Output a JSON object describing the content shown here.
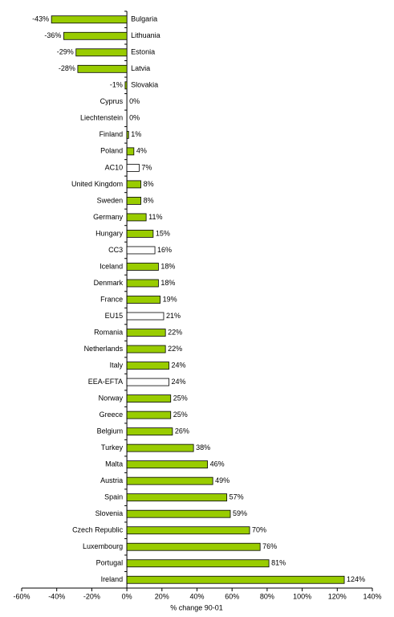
{
  "chart_data": {
    "type": "bar",
    "orientation": "horizontal",
    "x_label": "% change 90-01",
    "categories": [
      "Bulgaria",
      "Lithuania",
      "Estonia",
      "Latvia",
      "Slovakia",
      "Cyprus",
      "Liechtenstein",
      "Finland",
      "Poland",
      "AC10",
      "United Kingdom",
      "Sweden",
      "Germany",
      "Hungary",
      "CC3",
      "Iceland",
      "Denmark",
      "France",
      "EU15",
      "Romania",
      "Netherlands",
      "Italy",
      "EEA-EFTA",
      "Norway",
      "Greece",
      "Belgium",
      "Turkey",
      "Malta",
      "Austria",
      "Spain",
      "Slovenia",
      "Czech Republic",
      "Luxembourg",
      "Portugal",
      "Ireland"
    ],
    "values": [
      -43,
      -36,
      -29,
      -28,
      -1,
      0,
      0,
      1,
      4,
      7,
      8,
      8,
      11,
      15,
      16,
      18,
      18,
      19,
      21,
      22,
      22,
      24,
      24,
      25,
      25,
      26,
      38,
      46,
      49,
      57,
      59,
      70,
      76,
      81,
      124
    ],
    "value_labels": [
      "-43%",
      "-36%",
      "-29%",
      "-28%",
      "-1%",
      "0%",
      "0%",
      "1%",
      "4%",
      "7%",
      "8%",
      "8%",
      "11%",
      "15%",
      "16%",
      "18%",
      "18%",
      "19%",
      "21%",
      "22%",
      "22%",
      "24%",
      "24%",
      "25%",
      "25%",
      "26%",
      "38%",
      "46%",
      "49%",
      "57%",
      "59%",
      "70%",
      "76%",
      "81%",
      "124%"
    ],
    "colors": [
      "#99cc00",
      "#99cc00",
      "#99cc00",
      "#99cc00",
      "#99cc00",
      "#99cc00",
      "#99cc00",
      "#99cc00",
      "#99cc00",
      "#ffffff",
      "#99cc00",
      "#99cc00",
      "#99cc00",
      "#99cc00",
      "#ffffff",
      "#99cc00",
      "#99cc00",
      "#99cc00",
      "#ffffff",
      "#99cc00",
      "#99cc00",
      "#99cc00",
      "#ffffff",
      "#99cc00",
      "#99cc00",
      "#99cc00",
      "#99cc00",
      "#99cc00",
      "#99cc00",
      "#99cc00",
      "#99cc00",
      "#99cc00",
      "#99cc00",
      "#99cc00",
      "#99cc00"
    ],
    "xlim": [
      -60,
      140
    ],
    "xticks": [
      {
        "value": -60,
        "label": "-60%"
      },
      {
        "value": -40,
        "label": "-40%"
      },
      {
        "value": -20,
        "label": "-20%"
      },
      {
        "value": 0,
        "label": "0%"
      },
      {
        "value": 20,
        "label": "20%"
      },
      {
        "value": 40,
        "label": "40%"
      },
      {
        "value": 60,
        "label": "60%"
      },
      {
        "value": 80,
        "label": "80%"
      },
      {
        "value": 100,
        "label": "100%"
      },
      {
        "value": 120,
        "label": "120%"
      },
      {
        "value": 140,
        "label": "140%"
      }
    ],
    "grid": false
  }
}
